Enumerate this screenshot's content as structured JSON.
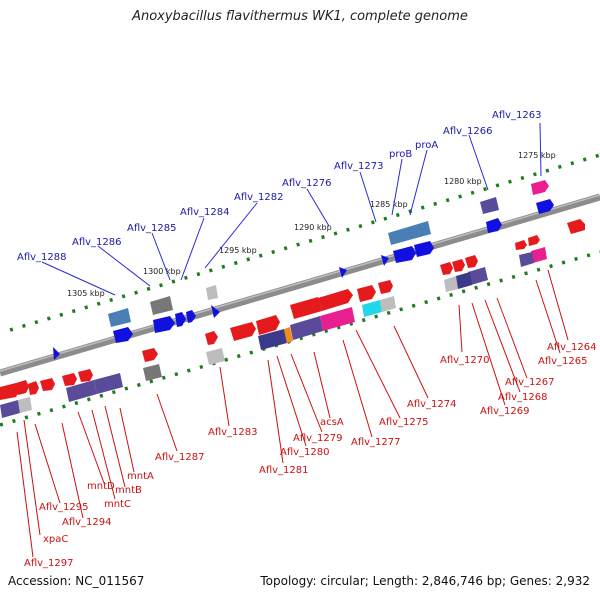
{
  "title": "Anoxybacillus flavithermus WK1, complete genome",
  "footer": {
    "accession": "Accession: NC_011567",
    "summary": "Topology: circular; Length: 2,846,746 bp; Genes: 2,932"
  },
  "colors": {
    "backbone": "#8c8c8c",
    "tick": "#1e7d1e",
    "forward_label": "#1a1aa8",
    "reverse_label": "#cc1111",
    "gene_red": "#e41a1c",
    "gene_blue": "#1010e0",
    "gene_steel": "#4a7fb5",
    "gene_purple": "#5a4a9a",
    "gene_pink": "#e8208f",
    "gene_gray": "#777777",
    "gene_cyan": "#22d8e8",
    "gene_orange": "#f08c1a"
  },
  "scale_labels": [
    "1275 kbp",
    "1280 kbp",
    "1285 kbp",
    "1290 kbp",
    "1295 kbp",
    "1300 kbp",
    "1305 kbp"
  ],
  "forward_labels": [
    "Aflv_1263",
    "Aflv_1266",
    "proA",
    "proB",
    "Aflv_1273",
    "Aflv_1276",
    "Aflv_1282",
    "Aflv_1284",
    "Aflv_1285",
    "Aflv_1286",
    "Aflv_1288"
  ],
  "reverse_labels": [
    "Aflv_1264",
    "Aflv_1265",
    "Aflv_1270",
    "Aflv_1267",
    "Aflv_1268",
    "Aflv_1269",
    "Aflv_1274",
    "Aflv_1275",
    "Aflv_1277",
    "acsA",
    "Aflv_1279",
    "Aflv_1280",
    "Aflv_1281",
    "Aflv_1283",
    "Aflv_1287",
    "mntA",
    "mntB",
    "mntC",
    "mntD",
    "Aflv_1294",
    "Aflv_1295",
    "xpaC",
    "Aflv_1297"
  ]
}
